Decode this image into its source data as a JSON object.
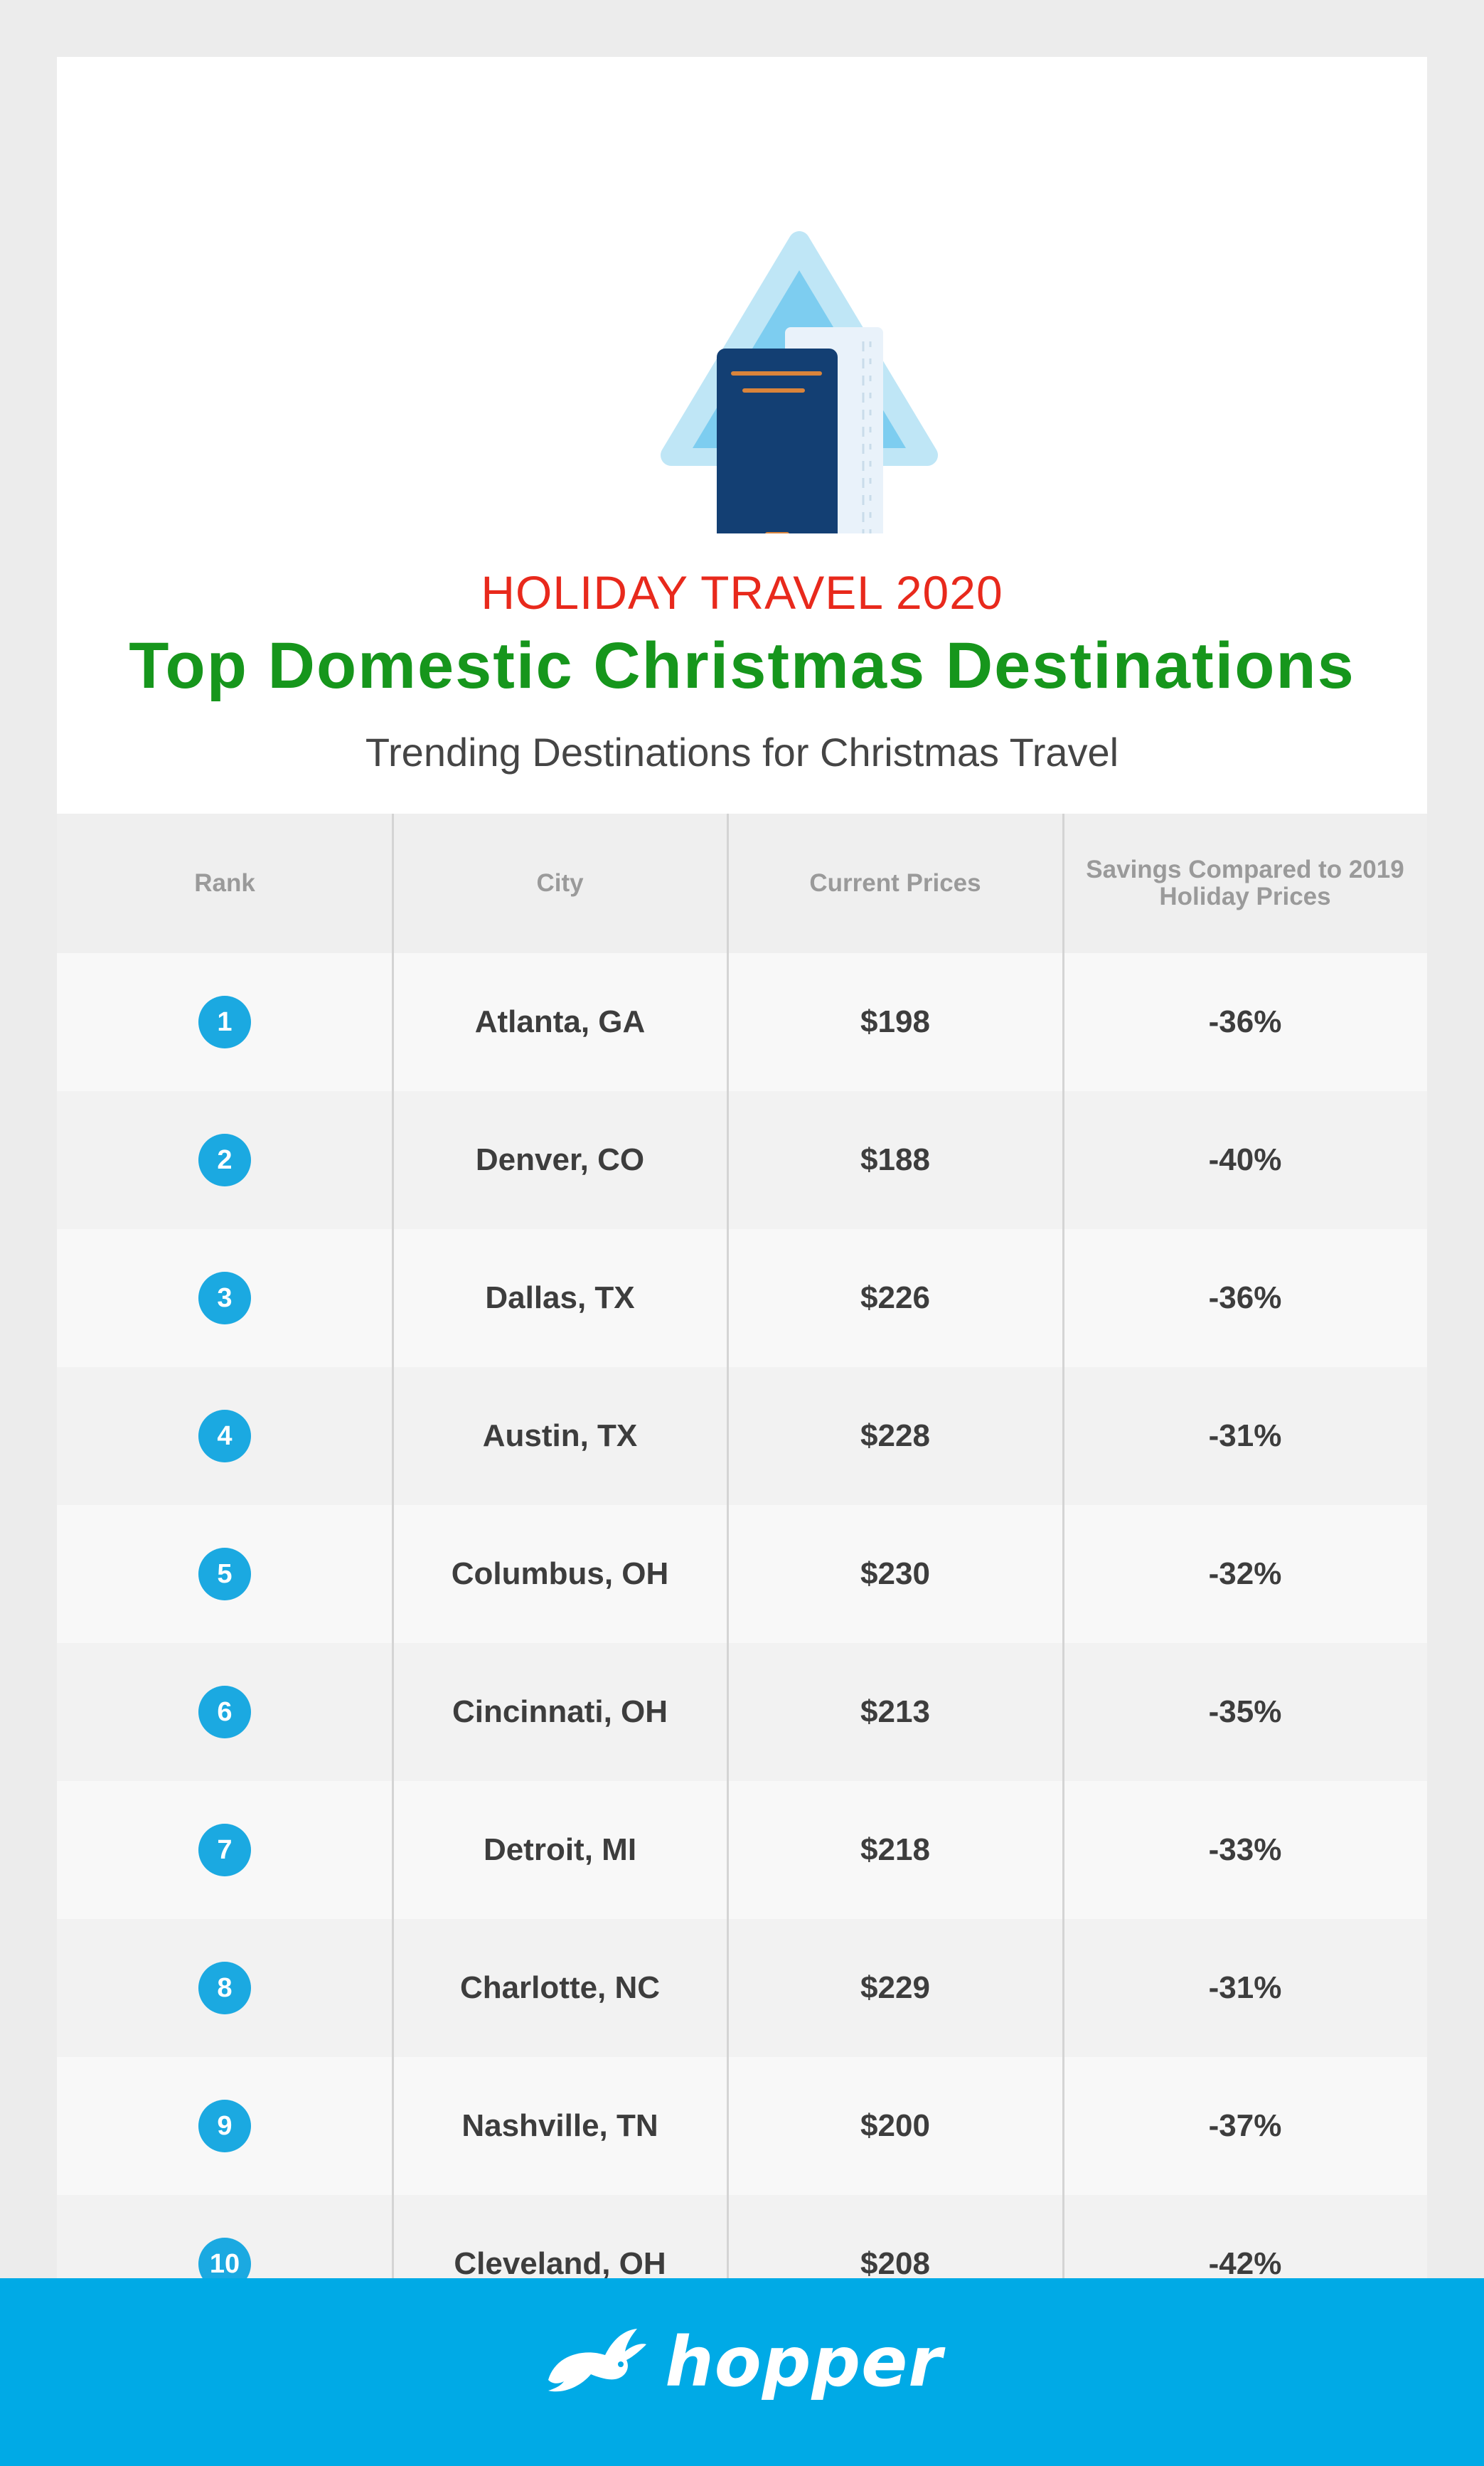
{
  "header": {
    "kicker": "HOLIDAY TRAVEL 2020",
    "title": "Top Domestic Christmas Destinations",
    "subtitle": "Trending Destinations for Christmas Travel"
  },
  "table": {
    "columns": [
      "Rank",
      "City",
      "Current Prices",
      "Savings Compared to 2019 Holiday Prices"
    ],
    "rows": [
      {
        "rank": "1",
        "city": "Atlanta, GA",
        "price": "$198",
        "savings": "-36%"
      },
      {
        "rank": "2",
        "city": "Denver, CO",
        "price": "$188",
        "savings": "-40%"
      },
      {
        "rank": "3",
        "city": "Dallas, TX",
        "price": "$226",
        "savings": "-36%"
      },
      {
        "rank": "4",
        "city": "Austin, TX",
        "price": "$228",
        "savings": "-31%"
      },
      {
        "rank": "5",
        "city": "Columbus, OH",
        "price": "$230",
        "savings": "-32%"
      },
      {
        "rank": "6",
        "city": "Cincinnati, OH",
        "price": "$213",
        "savings": "-35%"
      },
      {
        "rank": "7",
        "city": "Detroit, MI",
        "price": "$218",
        "savings": "-33%"
      },
      {
        "rank": "8",
        "city": "Charlotte, NC",
        "price": "$229",
        "savings": "-31%"
      },
      {
        "rank": "9",
        "city": "Nashville, TN",
        "price": "$200",
        "savings": "-37%"
      },
      {
        "rank": "10",
        "city": "Cleveland, OH",
        "price": "$208",
        "savings": "-42%"
      }
    ]
  },
  "footer": {
    "brand": "hopper"
  },
  "icons": {
    "hero": "passport-and-ticket-icon",
    "logo": "rabbit-logo-icon"
  },
  "colors": {
    "kicker": "#e8291c",
    "title": "#16961c",
    "accent": "#1ba9e1",
    "footer": "#00aae6"
  }
}
